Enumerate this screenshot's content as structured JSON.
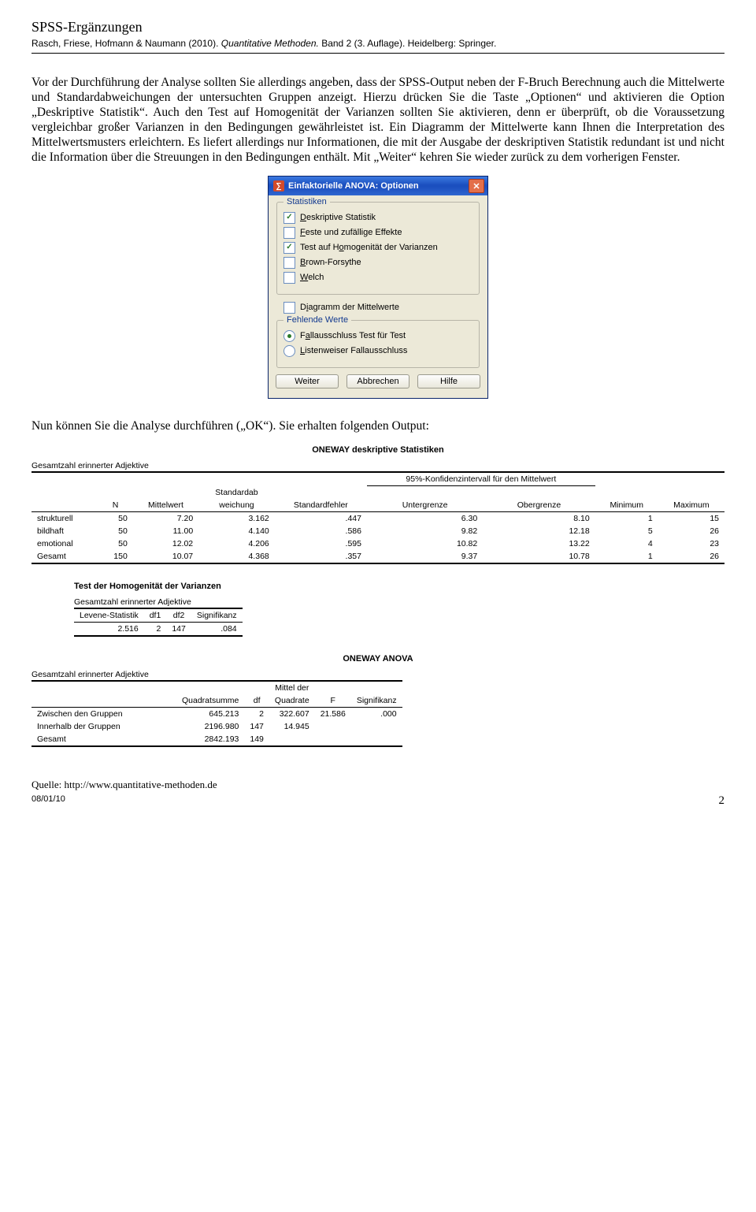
{
  "header": {
    "title": "SPSS-Ergänzungen",
    "subtitle_plain": "Rasch, Friese, Hofmann & Naumann (2010). ",
    "subtitle_italic": "Quantitative Methoden. ",
    "subtitle_rest": "Band 2 (3. Auflage). Heidelberg: Springer."
  },
  "body_paragraph": "Vor der Durchführung der Analyse sollten Sie allerdings angeben, dass der SPSS-Output neben der F-Bruch Berechnung auch die Mittelwerte und Standardabweichungen der untersuchten Gruppen anzeigt. Hierzu drücken Sie die Taste „Optionen“ und aktivieren die Option „Deskriptive Statistik“. Auch den Test auf Homogenität der Varianzen sollten Sie aktivieren, denn er überprüft, ob die Voraussetzung vergleichbar großer Varianzen in den Bedingungen gewährleistet ist. Ein Diagramm der Mittelwerte kann Ihnen die Interpretation des Mittelwertsmusters erleichtern. Es liefert allerdings nur Informationen, die mit der Ausgabe der deskriptiven Statistik redundant ist und nicht die Information über die Streuungen in den Bedingungen enthält. Mit „Weiter“ kehren Sie wieder zurück zu dem vorherigen Fenster.",
  "dialog": {
    "title": "Einfaktorielle ANOVA: Optionen",
    "group_stats": "Statistiken",
    "opts": {
      "desc": "Deskriptive Statistik",
      "fixed": "Feste und zufällige Effekte",
      "hom": "Test auf Homogenität der Varianzen",
      "bf": "Brown-Forsythe",
      "welch": "Welch",
      "means_plot": "Diagramm der Mittelwerte"
    },
    "group_missing": "Fehlende Werte",
    "missing": {
      "test": "Fallausschluss Test für Test",
      "list": "Listenweiser Fallausschluss"
    },
    "buttons": {
      "continue": "Weiter",
      "cancel": "Abbrechen",
      "help": "Hilfe"
    }
  },
  "after_dialog": "Nun können Sie die Analyse durchführen („OK“). Sie erhalten folgenden Output:",
  "out1": {
    "title": "ONEWAY deskriptive Statistiken",
    "caption": "Gesamtzahl erinnerter Adjektive",
    "ci_span": "95%-Konfidenzintervall für den Mittelwert",
    "cols": {
      "n": "N",
      "mean": "Mittelwert",
      "sd1": "Standardab",
      "sd2": "weichung",
      "se": "Standardfehler",
      "lb": "Untergrenze",
      "ub": "Obergrenze",
      "min": "Minimum",
      "max": "Maximum"
    },
    "rows": [
      {
        "label": "strukturell",
        "n": "50",
        "mean": "7.20",
        "sd": "3.162",
        "se": ".447",
        "lb": "6.30",
        "ub": "8.10",
        "min": "1",
        "max": "15"
      },
      {
        "label": "bildhaft",
        "n": "50",
        "mean": "11.00",
        "sd": "4.140",
        "se": ".586",
        "lb": "9.82",
        "ub": "12.18",
        "min": "5",
        "max": "26"
      },
      {
        "label": "emotional",
        "n": "50",
        "mean": "12.02",
        "sd": "4.206",
        "se": ".595",
        "lb": "10.82",
        "ub": "13.22",
        "min": "4",
        "max": "23"
      },
      {
        "label": "Gesamt",
        "n": "150",
        "mean": "10.07",
        "sd": "4.368",
        "se": ".357",
        "lb": "9.37",
        "ub": "10.78",
        "min": "1",
        "max": "26"
      }
    ]
  },
  "out2": {
    "title": "Test der Homogenität der Varianzen",
    "caption": "Gesamtzahl erinnerter Adjektive",
    "cols": {
      "lev": "Levene-Statistik",
      "df1": "df1",
      "df2": "df2",
      "sig": "Signifikanz"
    },
    "row": {
      "lev": "2.516",
      "df1": "2",
      "df2": "147",
      "sig": ".084"
    }
  },
  "out3": {
    "title": "ONEWAY ANOVA",
    "caption": "Gesamtzahl erinnerter Adjektive",
    "cols": {
      "ss": "Quadratsumme",
      "df": "df",
      "ms1": "Mittel der",
      "ms2": "Quadrate",
      "f": "F",
      "sig": "Signifikanz"
    },
    "rows": [
      {
        "label": "Zwischen den Gruppen",
        "ss": "645.213",
        "df": "2",
        "ms": "322.607",
        "f": "21.586",
        "sig": ".000"
      },
      {
        "label": "Innerhalb der Gruppen",
        "ss": "2196.980",
        "df": "147",
        "ms": "14.945",
        "f": "",
        "sig": ""
      },
      {
        "label": "Gesamt",
        "ss": "2842.193",
        "df": "149",
        "ms": "",
        "f": "",
        "sig": ""
      }
    ]
  },
  "footer": {
    "source": "Quelle: http://www.quantitative-methoden.de",
    "date": "08/01/10",
    "page": "2"
  }
}
